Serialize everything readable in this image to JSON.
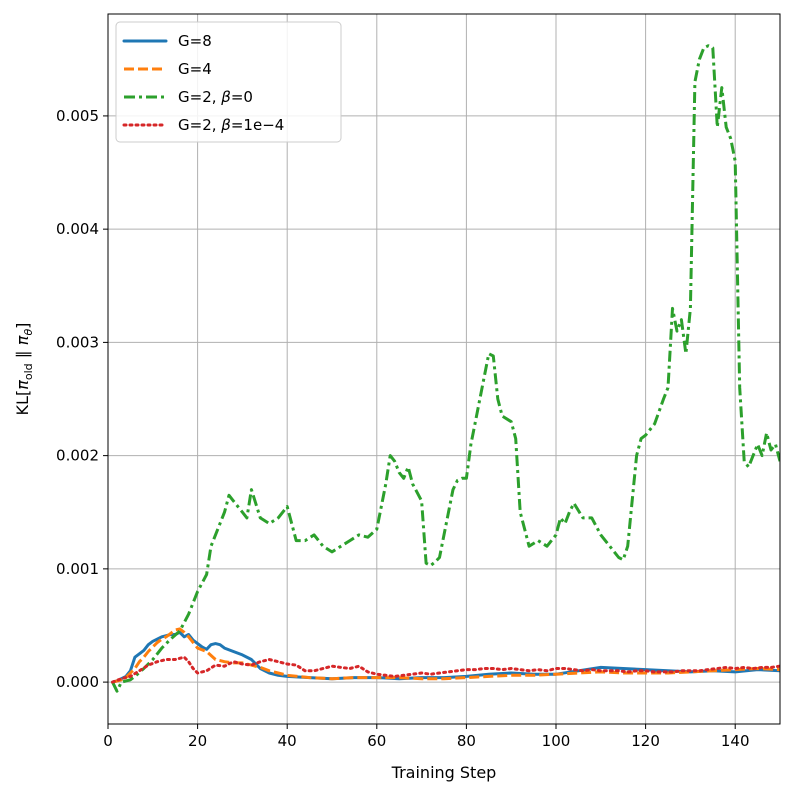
{
  "chart_data": {
    "type": "line",
    "title": "",
    "xlabel": "Training Step",
    "ylabel_parts": {
      "prefix": "KL[",
      "pi1": "π",
      "sub1": "old",
      "mid": " ∥ ",
      "pi2": "π",
      "sub2": "θ",
      "suffix": "]"
    },
    "xlim": [
      0,
      150
    ],
    "ylim": [
      -0.00037,
      0.0059
    ],
    "xticks": [
      0,
      20,
      40,
      60,
      80,
      100,
      120,
      140
    ],
    "xtick_labels": [
      "0",
      "20",
      "40",
      "60",
      "80",
      "100",
      "120",
      "140"
    ],
    "yticks": [
      0.0,
      0.001,
      0.002,
      0.003,
      0.004,
      0.005
    ],
    "ytick_labels": [
      "0.000",
      "0.001",
      "0.002",
      "0.003",
      "0.004",
      "0.005"
    ],
    "grid": true,
    "legend_position": "top-left",
    "series": [
      {
        "name": "G=8",
        "color": "#1f77b4",
        "style": "solid",
        "x": [
          1,
          2,
          3,
          4,
          5,
          6,
          7,
          8,
          9,
          10,
          11,
          12,
          13,
          14,
          15,
          16,
          17,
          18,
          19,
          20,
          21,
          22,
          23,
          24,
          25,
          26,
          28,
          30,
          32,
          34,
          36,
          38,
          40,
          45,
          50,
          55,
          60,
          65,
          70,
          75,
          80,
          85,
          90,
          95,
          100,
          105,
          110,
          115,
          120,
          125,
          130,
          135,
          140,
          145,
          150
        ],
        "y": [
          0.0,
          1e-05,
          3e-05,
          5e-05,
          0.0001,
          0.00022,
          0.00025,
          0.00028,
          0.00033,
          0.00036,
          0.00038,
          0.0004,
          0.00041,
          0.00042,
          0.00042,
          0.00044,
          0.0004,
          0.00042,
          0.00037,
          0.00034,
          0.00031,
          0.00029,
          0.00033,
          0.00034,
          0.00033,
          0.0003,
          0.00027,
          0.00024,
          0.0002,
          0.00012,
          8e-05,
          6e-05,
          5e-05,
          4e-05,
          3e-05,
          4e-05,
          4e-05,
          3e-05,
          4e-05,
          4e-05,
          5e-05,
          7e-05,
          8e-05,
          7e-05,
          7e-05,
          0.0001,
          0.00013,
          0.00012,
          0.00011,
          0.0001,
          9e-05,
          0.0001,
          9e-05,
          0.00011,
          0.0001
        ]
      },
      {
        "name": "G=4",
        "color": "#ff7f0e",
        "style": "dashed",
        "x": [
          1,
          2,
          3,
          4,
          5,
          6,
          7,
          8,
          9,
          10,
          11,
          12,
          13,
          14,
          15,
          16,
          17,
          18,
          19,
          20,
          22,
          24,
          26,
          28,
          30,
          32,
          34,
          36,
          38,
          40,
          45,
          50,
          55,
          60,
          65,
          70,
          75,
          80,
          85,
          90,
          95,
          100,
          105,
          110,
          115,
          120,
          125,
          130,
          135,
          140,
          145,
          150
        ],
        "y": [
          0.0,
          1e-05,
          2e-05,
          4e-05,
          8e-05,
          0.00012,
          0.00018,
          0.00022,
          0.00027,
          0.00031,
          0.00035,
          0.00038,
          0.0004,
          0.00043,
          0.00046,
          0.00047,
          0.00044,
          0.0004,
          0.00035,
          0.0003,
          0.00027,
          0.0002,
          0.00018,
          0.00017,
          0.00017,
          0.00015,
          0.00013,
          0.0001,
          8e-05,
          6e-05,
          4e-05,
          3e-05,
          4e-05,
          4e-05,
          4e-05,
          3e-05,
          3e-05,
          4e-05,
          5e-05,
          6e-05,
          6e-05,
          7e-05,
          8e-05,
          9e-05,
          8e-05,
          8e-05,
          8e-05,
          9e-05,
          0.0001,
          0.00011,
          0.00012,
          0.00011
        ]
      },
      {
        "name": "G=2, β=0",
        "color": "#2ca02c",
        "style": "dashdot",
        "x": [
          1,
          2,
          3,
          4,
          5,
          6,
          8,
          10,
          12,
          14,
          16,
          18,
          20,
          22,
          23,
          24,
          25,
          26,
          27,
          28,
          29,
          30,
          31,
          32,
          34,
          36,
          38,
          40,
          42,
          44,
          46,
          48,
          50,
          52,
          54,
          56,
          58,
          60,
          62,
          63,
          64,
          65,
          66,
          67,
          68,
          70,
          71,
          72,
          73,
          74,
          76,
          77,
          78,
          79,
          80,
          81,
          82,
          84,
          85,
          86,
          87,
          88,
          90,
          91,
          92,
          94,
          96,
          98,
          100,
          101,
          102,
          103,
          104,
          106,
          108,
          110,
          112,
          114,
          115,
          116,
          118,
          119,
          120,
          122,
          124,
          125,
          126,
          127,
          128,
          129,
          130,
          131,
          132,
          133,
          134,
          135,
          136,
          137,
          138,
          139,
          140,
          141,
          142,
          143,
          144,
          145,
          146,
          147,
          148,
          149,
          150
        ],
        "y": [
          0.0,
          -8e-05,
          0.0,
          1e-05,
          2e-05,
          5e-05,
          0.00012,
          0.0002,
          0.0003,
          0.00038,
          0.00045,
          0.0006,
          0.0008,
          0.00095,
          0.0012,
          0.0013,
          0.0014,
          0.0015,
          0.00165,
          0.0016,
          0.00155,
          0.0015,
          0.00145,
          0.0017,
          0.00145,
          0.0014,
          0.00145,
          0.00155,
          0.00125,
          0.00125,
          0.0013,
          0.0012,
          0.00115,
          0.0012,
          0.00125,
          0.0013,
          0.00128,
          0.00135,
          0.00175,
          0.002,
          0.00195,
          0.00185,
          0.0018,
          0.0019,
          0.00175,
          0.0016,
          0.00105,
          0.00103,
          0.00106,
          0.0011,
          0.0015,
          0.0017,
          0.00178,
          0.0018,
          0.0018,
          0.0021,
          0.0023,
          0.0027,
          0.0029,
          0.00288,
          0.0025,
          0.00235,
          0.0023,
          0.00215,
          0.0015,
          0.0012,
          0.00125,
          0.0012,
          0.0013,
          0.00145,
          0.0014,
          0.0015,
          0.00158,
          0.00145,
          0.00145,
          0.0013,
          0.0012,
          0.0011,
          0.00108,
          0.0012,
          0.002,
          0.00215,
          0.00218,
          0.00228,
          0.0025,
          0.0026,
          0.0033,
          0.0031,
          0.0032,
          0.0029,
          0.0033,
          0.0053,
          0.0055,
          0.0056,
          0.00562,
          0.0056,
          0.0049,
          0.00525,
          0.0049,
          0.0048,
          0.0046,
          0.0026,
          0.00195,
          0.0019,
          0.002,
          0.0021,
          0.002,
          0.0022,
          0.00205,
          0.0021,
          0.00195
        ]
      },
      {
        "name": "G=2, β=1e−4",
        "color": "#d62728",
        "style": "dotted",
        "x": [
          1,
          3,
          5,
          7,
          9,
          11,
          13,
          15,
          17,
          18,
          19,
          20,
          22,
          24,
          26,
          28,
          30,
          32,
          34,
          36,
          38,
          40,
          42,
          44,
          46,
          48,
          50,
          52,
          54,
          56,
          58,
          60,
          62,
          64,
          66,
          68,
          70,
          72,
          74,
          76,
          78,
          80,
          82,
          84,
          86,
          88,
          90,
          92,
          94,
          96,
          98,
          100,
          102,
          104,
          106,
          108,
          110,
          112,
          114,
          116,
          118,
          120,
          122,
          124,
          126,
          128,
          130,
          132,
          134,
          136,
          138,
          140,
          142,
          144,
          146,
          148,
          150
        ],
        "y": [
          0.0,
          3e-05,
          5e-05,
          0.0001,
          0.00015,
          0.00018,
          0.0002,
          0.0002,
          0.00022,
          0.00018,
          0.00012,
          8e-05,
          0.0001,
          0.00015,
          0.00014,
          0.00018,
          0.00016,
          0.00015,
          0.00018,
          0.0002,
          0.00018,
          0.00016,
          0.00015,
          0.0001,
          0.0001,
          0.00012,
          0.00014,
          0.00013,
          0.00012,
          0.00014,
          9e-05,
          7e-05,
          6e-05,
          5e-05,
          6e-05,
          7e-05,
          8e-05,
          7e-05,
          8e-05,
          9e-05,
          0.0001,
          0.00011,
          0.00011,
          0.00012,
          0.00012,
          0.00011,
          0.00012,
          0.00011,
          0.0001,
          0.00011,
          0.0001,
          0.00012,
          0.00012,
          0.00011,
          0.0001,
          0.00011,
          0.0001,
          0.0001,
          0.0001,
          9e-05,
          0.0001,
          0.0001,
          9e-05,
          9e-05,
          9e-05,
          0.0001,
          0.0001,
          0.0001,
          0.00011,
          0.00012,
          0.00013,
          0.00012,
          0.00013,
          0.00012,
          0.00013,
          0.00013,
          0.00014
        ]
      }
    ]
  }
}
